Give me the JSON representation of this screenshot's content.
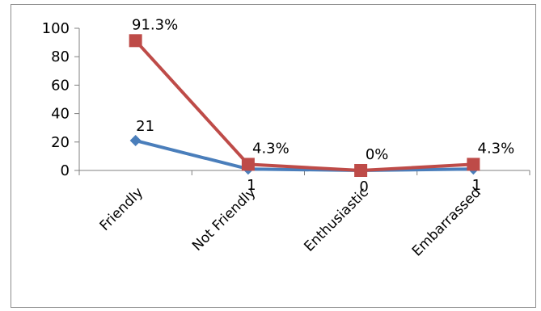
{
  "chart_data": {
    "type": "line",
    "categories": [
      "Friendly",
      "Not Friendly",
      "Enthusiastic",
      "Embarrassed"
    ],
    "series": [
      {
        "values": [
          21,
          1,
          0,
          1
        ],
        "data_labels": [
          "21",
          "1",
          "0",
          "1"
        ],
        "color": "#4a7ebb",
        "marker": "diamond"
      },
      {
        "values": [
          91.3,
          4.3,
          0,
          4.3
        ],
        "data_labels": [
          "91.3%",
          "4.3%",
          "0%",
          "4.3%"
        ],
        "color": "#be4b48",
        "marker": "square"
      }
    ],
    "yticks": [
      0,
      20,
      40,
      60,
      80,
      100
    ],
    "ylim": [
      0,
      100
    ],
    "grid": false,
    "legend": "none",
    "title": "",
    "xlabel": "",
    "ylabel": ""
  }
}
